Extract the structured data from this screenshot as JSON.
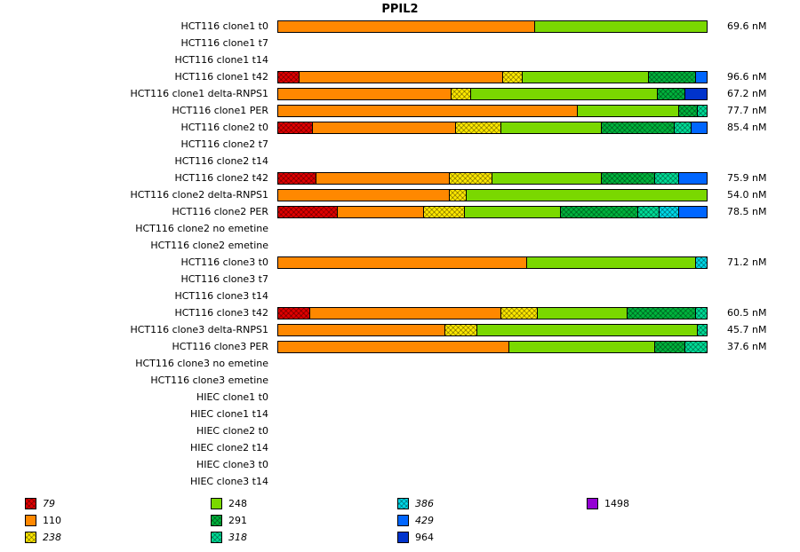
{
  "title": "PPIL2",
  "chart_data": {
    "type": "bar",
    "orientation": "horizontal",
    "stacked": true,
    "stacking": "percent",
    "unit": "nM",
    "legend_position": "bottom",
    "legend": [
      {
        "key": "79",
        "label": "79",
        "color": "#e00000",
        "hatched": true,
        "italic": true
      },
      {
        "key": "110",
        "label": "110",
        "color": "#ff8800",
        "hatched": false,
        "italic": false
      },
      {
        "key": "238",
        "label": "238",
        "color": "#ffe800",
        "hatched": true,
        "italic": true
      },
      {
        "key": "248",
        "label": "248",
        "color": "#7ad800",
        "hatched": false,
        "italic": false
      },
      {
        "key": "291",
        "label": "291",
        "color": "#00b33c",
        "hatched": true,
        "italic": false
      },
      {
        "key": "318",
        "label": "318",
        "color": "#00dc96",
        "hatched": true,
        "italic": true
      },
      {
        "key": "386",
        "label": "386",
        "color": "#00d8e8",
        "hatched": true,
        "italic": true
      },
      {
        "key": "429",
        "label": "429",
        "color": "#0066ff",
        "hatched": false,
        "italic": true
      },
      {
        "key": "964",
        "label": "964",
        "color": "#0033cc",
        "hatched": false,
        "italic": false
      },
      {
        "key": "1498",
        "label": "1498",
        "color": "#9400d3",
        "hatched": false,
        "italic": false
      }
    ],
    "legend_columns": [
      [
        "79",
        "110",
        "238"
      ],
      [
        "248",
        "291",
        "318"
      ],
      [
        "386",
        "429",
        "964"
      ],
      [
        "1498"
      ]
    ],
    "rows": [
      {
        "label": "HCT116 clone1 t0",
        "value": "69.6 nM",
        "segments": [
          {
            "k": "110",
            "p": 60
          },
          {
            "k": "248",
            "p": 40
          }
        ]
      },
      {
        "label": "HCT116 clone1 t7",
        "value": "",
        "segments": []
      },
      {
        "label": "HCT116 clone1 t14",
        "value": "",
        "segments": []
      },
      {
        "label": "HCT116 clone1 t42",
        "value": "96.6 nM",
        "segments": [
          {
            "k": "79",
            "p": 5
          },
          {
            "k": "110",
            "p": 47.5
          },
          {
            "k": "238",
            "p": 4.5
          },
          {
            "k": "248",
            "p": 29.5
          },
          {
            "k": "291",
            "p": 11
          },
          {
            "k": "429",
            "p": 2.5
          }
        ]
      },
      {
        "label": "HCT116 clone1 delta-RNPS1",
        "value": "67.2 nM",
        "segments": [
          {
            "k": "110",
            "p": 40.5
          },
          {
            "k": "238",
            "p": 4.5
          },
          {
            "k": "248",
            "p": 43.5
          },
          {
            "k": "291",
            "p": 6.5
          },
          {
            "k": "964",
            "p": 5
          }
        ]
      },
      {
        "label": "HCT116 clone1 PER",
        "value": "77.7 nM",
        "segments": [
          {
            "k": "110",
            "p": 70
          },
          {
            "k": "248",
            "p": 23.5
          },
          {
            "k": "291",
            "p": 4.5
          },
          {
            "k": "318",
            "p": 2
          }
        ]
      },
      {
        "label": "HCT116 clone2 t0",
        "value": "85.4 nM",
        "segments": [
          {
            "k": "79",
            "p": 8
          },
          {
            "k": "110",
            "p": 33.5
          },
          {
            "k": "238",
            "p": 10.5
          },
          {
            "k": "248",
            "p": 23.5
          },
          {
            "k": "291",
            "p": 17
          },
          {
            "k": "318",
            "p": 4
          },
          {
            "k": "429",
            "p": 3.5
          }
        ]
      },
      {
        "label": "HCT116 clone2 t7",
        "value": "",
        "segments": []
      },
      {
        "label": "HCT116 clone2 t14",
        "value": "",
        "segments": []
      },
      {
        "label": "HCT116 clone2 t42",
        "value": "75.9 nM",
        "segments": [
          {
            "k": "79",
            "p": 9
          },
          {
            "k": "110",
            "p": 31
          },
          {
            "k": "238",
            "p": 10
          },
          {
            "k": "248",
            "p": 25.5
          },
          {
            "k": "291",
            "p": 12.5
          },
          {
            "k": "318",
            "p": 5.5
          },
          {
            "k": "429",
            "p": 6.5
          }
        ]
      },
      {
        "label": "HCT116 clone2 delta-RNPS1",
        "value": "54.0 nM",
        "segments": [
          {
            "k": "110",
            "p": 40
          },
          {
            "k": "238",
            "p": 4
          },
          {
            "k": "248",
            "p": 56
          }
        ]
      },
      {
        "label": "HCT116 clone2 PER",
        "value": "78.5 nM",
        "segments": [
          {
            "k": "79",
            "p": 14
          },
          {
            "k": "110",
            "p": 20
          },
          {
            "k": "238",
            "p": 9.5
          },
          {
            "k": "248",
            "p": 22.5
          },
          {
            "k": "291",
            "p": 18
          },
          {
            "k": "318",
            "p": 5
          },
          {
            "k": "386",
            "p": 4.5
          },
          {
            "k": "429",
            "p": 6.5
          }
        ]
      },
      {
        "label": "HCT116 clone2 no emetine",
        "value": "",
        "segments": []
      },
      {
        "label": "HCT116 clone2 emetine",
        "value": "",
        "segments": []
      },
      {
        "label": "HCT116 clone3 t0",
        "value": "71.2 nM",
        "segments": [
          {
            "k": "110",
            "p": 58
          },
          {
            "k": "248",
            "p": 39.5
          },
          {
            "k": "386",
            "p": 2.5
          }
        ]
      },
      {
        "label": "HCT116 clone3 t7",
        "value": "",
        "segments": []
      },
      {
        "label": "HCT116 clone3 t14",
        "value": "",
        "segments": []
      },
      {
        "label": "HCT116 clone3 t42",
        "value": "60.5 nM",
        "segments": [
          {
            "k": "79",
            "p": 7.5
          },
          {
            "k": "110",
            "p": 44.5
          },
          {
            "k": "238",
            "p": 8.5
          },
          {
            "k": "248",
            "p": 21
          },
          {
            "k": "291",
            "p": 16
          },
          {
            "k": "318",
            "p": 2.5
          }
        ]
      },
      {
        "label": "HCT116 clone3 delta-RNPS1",
        "value": "45.7 nM",
        "segments": [
          {
            "k": "110",
            "p": 39
          },
          {
            "k": "238",
            "p": 7.5
          },
          {
            "k": "248",
            "p": 51.5
          },
          {
            "k": "318",
            "p": 2
          }
        ]
      },
      {
        "label": "HCT116 clone3 PER",
        "value": "37.6 nM",
        "segments": [
          {
            "k": "110",
            "p": 54
          },
          {
            "k": "248",
            "p": 34
          },
          {
            "k": "291",
            "p": 7
          },
          {
            "k": "318",
            "p": 5
          }
        ]
      },
      {
        "label": "HCT116 clone3 no emetine",
        "value": "",
        "segments": []
      },
      {
        "label": "HCT116 clone3 emetine",
        "value": "",
        "segments": []
      },
      {
        "label": "HIEC clone1 t0",
        "value": "",
        "segments": []
      },
      {
        "label": "HIEC clone1 t14",
        "value": "",
        "segments": []
      },
      {
        "label": "HIEC clone2 t0",
        "value": "",
        "segments": []
      },
      {
        "label": "HIEC clone2 t14",
        "value": "",
        "segments": []
      },
      {
        "label": "HIEC clone3 t0",
        "value": "",
        "segments": []
      },
      {
        "label": "HIEC clone3 t14",
        "value": "",
        "segments": []
      }
    ]
  }
}
